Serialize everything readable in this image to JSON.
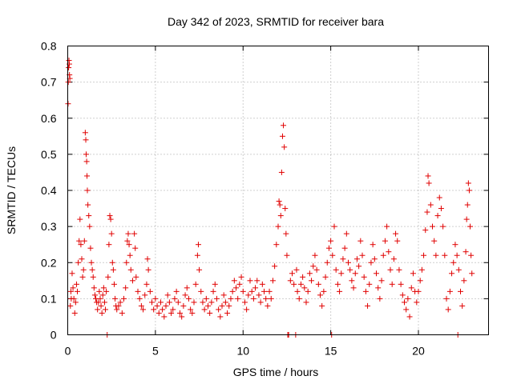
{
  "chart_data": {
    "type": "scatter",
    "title": "Day 342 of 2023, SRMTID for receiver bara",
    "xlabel": "GPS time / hours",
    "ylabel": "SRMTID / TECUs",
    "xlim": [
      0,
      24
    ],
    "ylim": [
      0,
      0.8
    ],
    "xticks": [
      "0",
      "5",
      "10",
      "15",
      "20"
    ],
    "yticks": [
      "0",
      "0.1",
      "0.2",
      "0.3",
      "0.4",
      "0.5",
      "0.6",
      "0.7",
      "0.8"
    ],
    "grid": true,
    "marker": "plus",
    "color": "#e00000",
    "series": [
      {
        "name": "SRMTID",
        "points": [
          [
            0.02,
            0.64
          ],
          [
            0.03,
            0.7
          ],
          [
            0.05,
            0.74
          ],
          [
            0.07,
            0.76
          ],
          [
            0.09,
            0.75
          ],
          [
            0.1,
            0.72
          ],
          [
            0.12,
            0.71
          ],
          [
            0.15,
            0.08
          ],
          [
            0.18,
            0.12
          ],
          [
            0.2,
            0.1
          ],
          [
            0.25,
            0.17
          ],
          [
            0.3,
            0.13
          ],
          [
            0.35,
            0.1
          ],
          [
            0.4,
            0.06
          ],
          [
            0.45,
            0.09
          ],
          [
            0.5,
            0.14
          ],
          [
            0.55,
            0.12
          ],
          [
            0.6,
            0.2
          ],
          [
            0.65,
            0.26
          ],
          [
            0.7,
            0.32
          ],
          [
            0.75,
            0.25
          ],
          [
            0.8,
            0.21
          ],
          [
            0.85,
            0.16
          ],
          [
            0.9,
            0.18
          ],
          [
            0.95,
            0.26
          ],
          [
            1.0,
            0.56
          ],
          [
            1.03,
            0.54
          ],
          [
            1.05,
            0.5
          ],
          [
            1.08,
            0.48
          ],
          [
            1.1,
            0.44
          ],
          [
            1.12,
            0.4
          ],
          [
            1.15,
            0.36
          ],
          [
            1.2,
            0.33
          ],
          [
            1.25,
            0.3
          ],
          [
            1.3,
            0.24
          ],
          [
            1.35,
            0.2
          ],
          [
            1.4,
            0.18
          ],
          [
            1.45,
            0.16
          ],
          [
            1.5,
            0.13
          ],
          [
            1.55,
            0.11
          ],
          [
            1.6,
            0.1
          ],
          [
            1.65,
            0.09
          ],
          [
            1.7,
            0.07
          ],
          [
            1.75,
            0.09
          ],
          [
            1.8,
            0.12
          ],
          [
            1.85,
            0.1
          ],
          [
            1.9,
            0.08
          ],
          [
            1.95,
            0.06
          ],
          [
            2.0,
            0.11
          ],
          [
            2.05,
            0.13
          ],
          [
            2.1,
            0.09
          ],
          [
            2.15,
            0.07
          ],
          [
            2.2,
            0.12
          ],
          [
            2.25,
            0.0
          ],
          [
            2.3,
            0.16
          ],
          [
            2.35,
            0.25
          ],
          [
            2.4,
            0.33
          ],
          [
            2.45,
            0.32
          ],
          [
            2.5,
            0.28
          ],
          [
            2.55,
            0.2
          ],
          [
            2.6,
            0.18
          ],
          [
            2.65,
            0.14
          ],
          [
            2.7,
            0.1
          ],
          [
            2.75,
            0.08
          ],
          [
            2.8,
            0.07
          ],
          [
            2.9,
            0.08
          ],
          [
            3.0,
            0.09
          ],
          [
            3.1,
            0.06
          ],
          [
            3.2,
            0.1
          ],
          [
            3.3,
            0.13
          ],
          [
            3.35,
            0.2
          ],
          [
            3.4,
            0.26
          ],
          [
            3.45,
            0.28
          ],
          [
            3.5,
            0.25
          ],
          [
            3.55,
            0.22
          ],
          [
            3.6,
            0.18
          ],
          [
            3.7,
            0.15
          ],
          [
            3.8,
            0.28
          ],
          [
            3.85,
            0.24
          ],
          [
            3.9,
            0.16
          ],
          [
            4.0,
            0.12
          ],
          [
            4.1,
            0.1
          ],
          [
            4.2,
            0.08
          ],
          [
            4.3,
            0.07
          ],
          [
            4.4,
            0.11
          ],
          [
            4.5,
            0.14
          ],
          [
            4.55,
            0.21
          ],
          [
            4.6,
            0.18
          ],
          [
            4.7,
            0.12
          ],
          [
            4.8,
            0.09
          ],
          [
            4.9,
            0.07
          ],
          [
            5.0,
            0.1
          ],
          [
            5.1,
            0.08
          ],
          [
            5.2,
            0.06
          ],
          [
            5.3,
            0.09
          ],
          [
            5.4,
            0.07
          ],
          [
            5.5,
            0.05
          ],
          [
            5.6,
            0.08
          ],
          [
            5.7,
            0.11
          ],
          [
            5.8,
            0.09
          ],
          [
            5.9,
            0.06
          ],
          [
            6.0,
            0.07
          ],
          [
            6.1,
            0.1
          ],
          [
            6.2,
            0.12
          ],
          [
            6.3,
            0.09
          ],
          [
            6.4,
            0.06
          ],
          [
            6.5,
            0.05
          ],
          [
            6.6,
            0.08
          ],
          [
            6.7,
            0.11
          ],
          [
            6.8,
            0.13
          ],
          [
            6.9,
            0.1
          ],
          [
            7.0,
            0.07
          ],
          [
            7.1,
            0.06
          ],
          [
            7.2,
            0.09
          ],
          [
            7.3,
            0.14
          ],
          [
            7.4,
            0.22
          ],
          [
            7.45,
            0.25
          ],
          [
            7.5,
            0.18
          ],
          [
            7.6,
            0.12
          ],
          [
            7.7,
            0.09
          ],
          [
            7.8,
            0.07
          ],
          [
            7.9,
            0.1
          ],
          [
            8.0,
            0.08
          ],
          [
            8.1,
            0.06
          ],
          [
            8.2,
            0.09
          ],
          [
            8.3,
            0.12
          ],
          [
            8.4,
            0.14
          ],
          [
            8.5,
            0.1
          ],
          [
            8.6,
            0.07
          ],
          [
            8.7,
            0.05
          ],
          [
            8.8,
            0.08
          ],
          [
            8.9,
            0.11
          ],
          [
            9.0,
            0.09
          ],
          [
            9.1,
            0.06
          ],
          [
            9.2,
            0.08
          ],
          [
            9.3,
            0.1
          ],
          [
            9.4,
            0.12
          ],
          [
            9.5,
            0.15
          ],
          [
            9.6,
            0.13
          ],
          [
            9.7,
            0.1
          ],
          [
            9.8,
            0.14
          ],
          [
            9.9,
            0.16
          ],
          [
            10.0,
            0.12
          ],
          [
            10.1,
            0.09
          ],
          [
            10.2,
            0.07
          ],
          [
            10.3,
            0.11
          ],
          [
            10.4,
            0.15
          ],
          [
            10.5,
            0.12
          ],
          [
            10.6,
            0.1
          ],
          [
            10.7,
            0.13
          ],
          [
            10.8,
            0.15
          ],
          [
            10.9,
            0.11
          ],
          [
            11.0,
            0.09
          ],
          [
            11.1,
            0.14
          ],
          [
            11.2,
            0.12
          ],
          [
            11.3,
            0.1
          ],
          [
            11.4,
            0.08
          ],
          [
            11.5,
            0.12
          ],
          [
            11.6,
            0.1
          ],
          [
            11.7,
            0.15
          ],
          [
            11.8,
            0.19
          ],
          [
            11.9,
            0.25
          ],
          [
            12.0,
            0.3
          ],
          [
            12.05,
            0.37
          ],
          [
            12.1,
            0.36
          ],
          [
            12.15,
            0.33
          ],
          [
            12.2,
            0.45
          ],
          [
            12.25,
            0.55
          ],
          [
            12.3,
            0.58
          ],
          [
            12.35,
            0.52
          ],
          [
            12.4,
            0.35
          ],
          [
            12.45,
            0.28
          ],
          [
            12.5,
            0.22
          ],
          [
            12.55,
            0.0
          ],
          [
            12.6,
            0.0
          ],
          [
            12.7,
            0.15
          ],
          [
            12.8,
            0.17
          ],
          [
            12.9,
            0.14
          ],
          [
            13.0,
            0.0
          ],
          [
            13.05,
            0.18
          ],
          [
            13.1,
            0.12
          ],
          [
            13.2,
            0.1
          ],
          [
            13.3,
            0.14
          ],
          [
            13.4,
            0.16
          ],
          [
            13.5,
            0.13
          ],
          [
            13.6,
            0.09
          ],
          [
            13.7,
            0.12
          ],
          [
            13.8,
            0.17
          ],
          [
            13.9,
            0.15
          ],
          [
            14.0,
            0.19
          ],
          [
            14.1,
            0.22
          ],
          [
            14.2,
            0.18
          ],
          [
            14.3,
            0.14
          ],
          [
            14.4,
            0.11
          ],
          [
            14.5,
            0.08
          ],
          [
            14.6,
            0.12
          ],
          [
            14.7,
            0.16
          ],
          [
            14.8,
            0.2
          ],
          [
            14.9,
            0.24
          ],
          [
            15.0,
            0.26
          ],
          [
            15.05,
            0.0
          ],
          [
            15.1,
            0.22
          ],
          [
            15.2,
            0.3
          ],
          [
            15.3,
            0.18
          ],
          [
            15.4,
            0.14
          ],
          [
            15.5,
            0.12
          ],
          [
            15.6,
            0.17
          ],
          [
            15.7,
            0.21
          ],
          [
            15.8,
            0.24
          ],
          [
            15.9,
            0.28
          ],
          [
            16.0,
            0.2
          ],
          [
            16.1,
            0.18
          ],
          [
            16.2,
            0.15
          ],
          [
            16.3,
            0.13
          ],
          [
            16.4,
            0.17
          ],
          [
            16.5,
            0.21
          ],
          [
            16.6,
            0.19
          ],
          [
            16.7,
            0.26
          ],
          [
            16.8,
            0.22
          ],
          [
            16.9,
            0.16
          ],
          [
            17.0,
            0.12
          ],
          [
            17.1,
            0.08
          ],
          [
            17.2,
            0.14
          ],
          [
            17.3,
            0.2
          ],
          [
            17.4,
            0.25
          ],
          [
            17.5,
            0.21
          ],
          [
            17.6,
            0.17
          ],
          [
            17.7,
            0.13
          ],
          [
            17.8,
            0.1
          ],
          [
            17.9,
            0.15
          ],
          [
            18.0,
            0.22
          ],
          [
            18.1,
            0.26
          ],
          [
            18.2,
            0.3
          ],
          [
            18.3,
            0.23
          ],
          [
            18.4,
            0.18
          ],
          [
            18.5,
            0.14
          ],
          [
            18.6,
            0.21
          ],
          [
            18.7,
            0.28
          ],
          [
            18.8,
            0.26
          ],
          [
            18.9,
            0.18
          ],
          [
            19.0,
            0.14
          ],
          [
            19.1,
            0.11
          ],
          [
            19.2,
            0.09
          ],
          [
            19.3,
            0.07
          ],
          [
            19.4,
            0.1
          ],
          [
            19.5,
            0.05
          ],
          [
            19.6,
            0.13
          ],
          [
            19.7,
            0.17
          ],
          [
            19.8,
            0.12
          ],
          [
            19.9,
            0.09
          ],
          [
            20.0,
            0.12
          ],
          [
            20.1,
            0.15
          ],
          [
            20.2,
            0.18
          ],
          [
            20.3,
            0.22
          ],
          [
            20.4,
            0.29
          ],
          [
            20.5,
            0.34
          ],
          [
            20.55,
            0.44
          ],
          [
            20.6,
            0.42
          ],
          [
            20.7,
            0.36
          ],
          [
            20.8,
            0.3
          ],
          [
            20.9,
            0.26
          ],
          [
            21.0,
            0.22
          ],
          [
            21.1,
            0.33
          ],
          [
            21.2,
            0.38
          ],
          [
            21.3,
            0.35
          ],
          [
            21.4,
            0.3
          ],
          [
            21.5,
            0.22
          ],
          [
            21.6,
            0.1
          ],
          [
            21.7,
            0.07
          ],
          [
            21.8,
            0.12
          ],
          [
            21.9,
            0.17
          ],
          [
            22.0,
            0.2
          ],
          [
            22.1,
            0.25
          ],
          [
            22.2,
            0.22
          ],
          [
            22.25,
            0.0
          ],
          [
            22.3,
            0.18
          ],
          [
            22.4,
            0.12
          ],
          [
            22.5,
            0.08
          ],
          [
            22.6,
            0.15
          ],
          [
            22.7,
            0.23
          ],
          [
            22.75,
            0.32
          ],
          [
            22.8,
            0.36
          ],
          [
            22.85,
            0.42
          ],
          [
            22.9,
            0.4
          ],
          [
            22.95,
            0.3
          ],
          [
            23.0,
            0.22
          ],
          [
            23.05,
            0.17
          ]
        ]
      }
    ]
  }
}
